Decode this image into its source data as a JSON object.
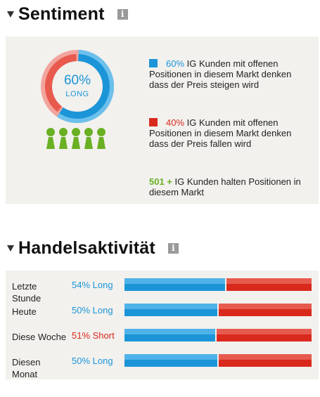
{
  "sentiment": {
    "title": "Sentiment",
    "donut_pct": "60%",
    "donut_label": "LONG",
    "long_fraction": 0.6,
    "long_pct": "60%",
    "long_text": "IG Kunden mit offenen Positionen in diesem Markt denken dass der Preis steigen wird",
    "short_pct": "40%",
    "short_text": "IG Kunden mit offenen Positionen in diesem Markt denken dass der Preis fallen wird",
    "clients_count": "501 +",
    "clients_text": "IG Kunden halten Positionen in diesem Markt",
    "colors": {
      "long": "#1b95d8",
      "short": "#d9291c",
      "people": "#6ab023"
    }
  },
  "activity": {
    "title": "Handelsaktivität",
    "rows": [
      {
        "label_line1": "Letzte",
        "label_line2": "Stunde",
        "value": "54% Long",
        "long_fraction": 0.54,
        "direction": "long"
      },
      {
        "label_line1": "Heute",
        "label_line2": "",
        "value": "50% Long",
        "long_fraction": 0.5,
        "direction": "long"
      },
      {
        "label_line1": "Diese Woche",
        "label_line2": "",
        "value": "51% Short",
        "long_fraction": 0.49,
        "direction": "short"
      },
      {
        "label_line1": "Diesen",
        "label_line2": "Monat",
        "value": "50% Long",
        "long_fraction": 0.5,
        "direction": "long"
      }
    ]
  },
  "icons": {
    "toggle": "collapse-triangle-icon",
    "info": "info-icon",
    "people": "people-icon"
  }
}
